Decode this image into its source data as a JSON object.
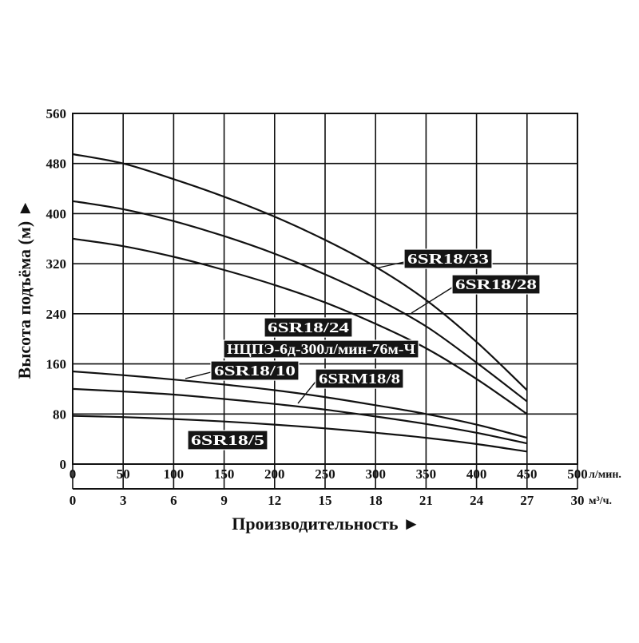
{
  "chart_data": {
    "type": "line",
    "title": "",
    "xlabel": "Производительность ►",
    "ylabel": "Высота подъёма (м) ►",
    "x_unit_primary": "л/мин.",
    "x_unit_secondary": "м³/ч.",
    "xlim": [
      0,
      500
    ],
    "ylim": [
      0,
      560
    ],
    "grid": true,
    "x_ticks": [
      "0",
      "50",
      "100",
      "150",
      "200",
      "250",
      "300",
      "350",
      "400",
      "450",
      "500"
    ],
    "x_ticks_secondary": [
      "0",
      "3",
      "6",
      "9",
      "12",
      "15",
      "18",
      "21",
      "24",
      "27",
      "30"
    ],
    "y_ticks": [
      "0",
      "80",
      "160",
      "240",
      "320",
      "400",
      "480",
      "560"
    ],
    "series": [
      {
        "name": "6SR18/33",
        "x": [
          0,
          50,
          100,
          150,
          200,
          250,
          300,
          350,
          400,
          450
        ],
        "y": [
          495,
          480,
          455,
          427,
          395,
          358,
          315,
          262,
          195,
          118
        ]
      },
      {
        "name": "6SR18/28",
        "x": [
          0,
          50,
          100,
          150,
          200,
          250,
          300,
          350,
          400,
          450
        ],
        "y": [
          420,
          407,
          388,
          364,
          336,
          303,
          265,
          220,
          162,
          100
        ]
      },
      {
        "name": "6SR18/24",
        "x": [
          0,
          50,
          100,
          150,
          200,
          250,
          300,
          350,
          400,
          450
        ],
        "y": [
          360,
          348,
          331,
          310,
          286,
          258,
          224,
          185,
          136,
          80
        ]
      },
      {
        "name": "6SR18/10",
        "x": [
          0,
          50,
          100,
          150,
          200,
          250,
          300,
          350,
          400,
          450
        ],
        "y": [
          148,
          142,
          135,
          127,
          118,
          107,
          94,
          80,
          63,
          42
        ]
      },
      {
        "name": "6SRM18/8",
        "x": [
          0,
          50,
          100,
          150,
          200,
          250,
          300,
          350,
          400,
          450
        ],
        "y": [
          120,
          116,
          111,
          104,
          96,
          87,
          76,
          64,
          50,
          33
        ]
      },
      {
        "name": "6SR18/5",
        "x": [
          0,
          50,
          100,
          150,
          200,
          250,
          300,
          350,
          400,
          450
        ],
        "y": [
          77,
          75,
          72,
          68,
          63,
          57,
          50,
          42,
          32,
          20
        ]
      }
    ],
    "labels": [
      {
        "series": "6SR18/33",
        "text": "6SR18/33"
      },
      {
        "series": "6SR18/28",
        "text": "6SR18/28"
      },
      {
        "series": "6SR18/24",
        "text": "6SR18/24"
      },
      {
        "series": "",
        "text": "НЦПЭ-6д-300л/мин-76м-Ч"
      },
      {
        "series": "6SR18/10",
        "text": "6SR18/10"
      },
      {
        "series": "6SRM18/8",
        "text": "6SRM18/8"
      },
      {
        "series": "6SR18/5",
        "text": "6SR18/5"
      }
    ]
  }
}
